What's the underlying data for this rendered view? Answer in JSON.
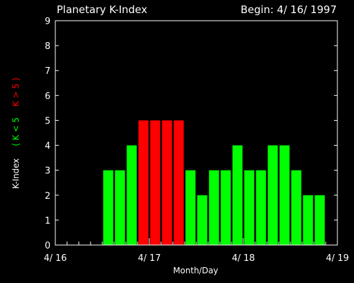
{
  "chart_data": {
    "type": "bar",
    "title": "Planetary K-Index",
    "subtitle": "Begin: 4/ 16/ 1997",
    "xlabel": "Month/Day",
    "ylabel": "K-Index",
    "ylabel_legend": {
      "low": "( K < 5",
      "high": "K > 5 )"
    },
    "ylim": [
      0,
      9
    ],
    "yticks": [
      "0",
      "1",
      "2",
      "3",
      "4",
      "5",
      "6",
      "7",
      "8",
      "9"
    ],
    "xlim": [
      0,
      24
    ],
    "xticks": [
      {
        "label": "4/ 16",
        "pos": 0
      },
      {
        "label": "4/ 17",
        "pos": 8
      },
      {
        "label": "4/ 18",
        "pos": 16
      },
      {
        "label": "4/ 19",
        "pos": 24
      }
    ],
    "threshold": 5,
    "colors": {
      "low": "#00ff00",
      "high": "#ff0000",
      "axis": "#ffffff",
      "background": "#000000"
    },
    "values": [
      0,
      0,
      0,
      0,
      3,
      3,
      4,
      5,
      5,
      5,
      5,
      3,
      2,
      3,
      3,
      4,
      3,
      3,
      4,
      4,
      3,
      2,
      2,
      0
    ]
  }
}
